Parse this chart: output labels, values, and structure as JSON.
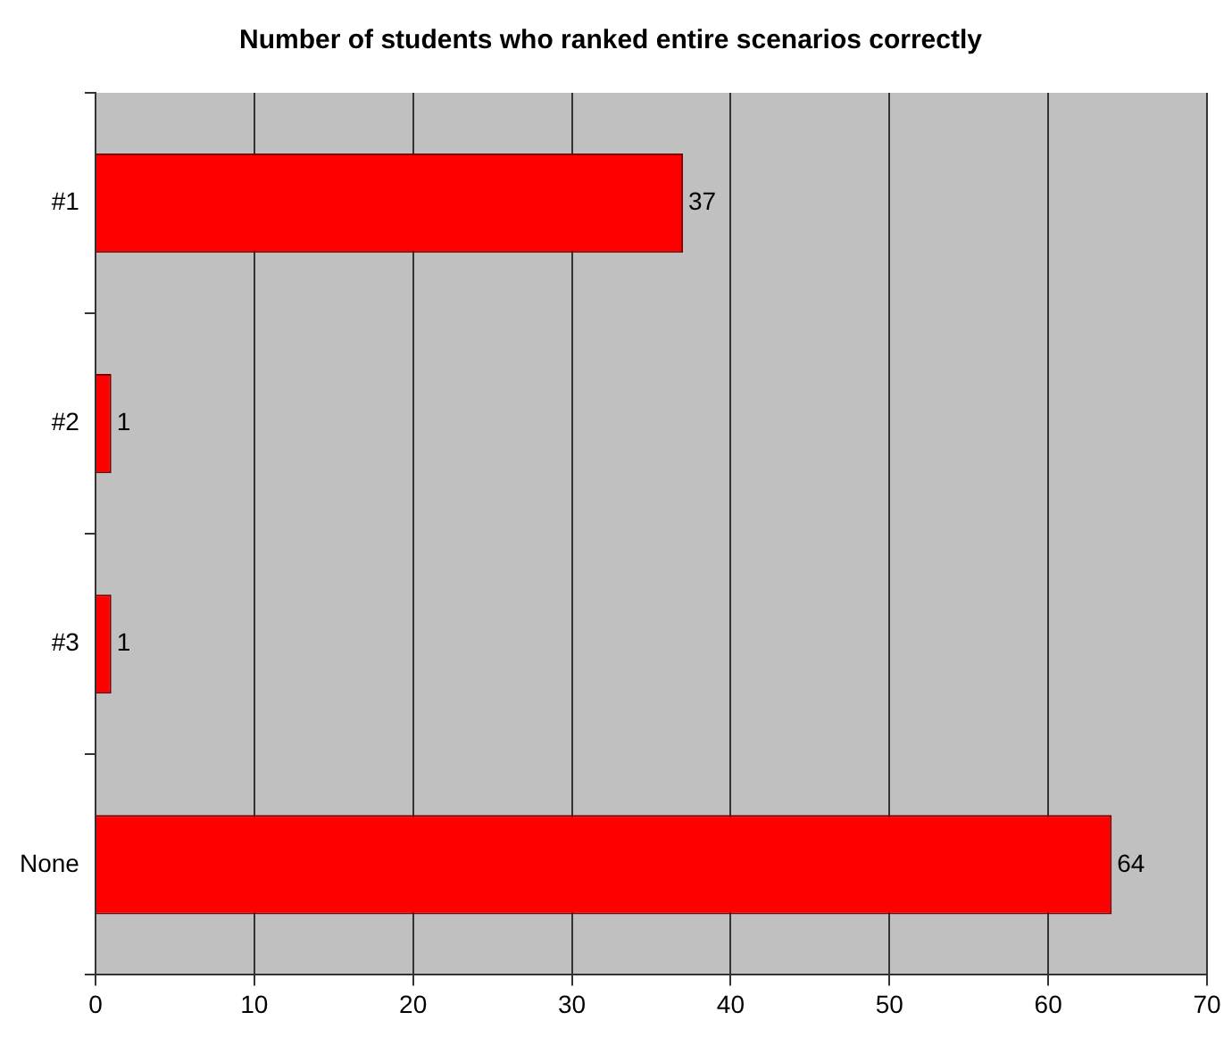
{
  "chart_data": {
    "type": "bar",
    "orientation": "horizontal",
    "title": "Number of students who ranked entire scenarios correctly",
    "categories": [
      "#1",
      "#2",
      "#3",
      "None"
    ],
    "values": [
      37,
      1,
      1,
      64
    ],
    "color": "#ff0000",
    "xlim": [
      0,
      70
    ],
    "xticks": [
      0,
      10,
      20,
      30,
      40,
      50,
      60,
      70
    ],
    "grid": "x",
    "data_labels": true
  }
}
